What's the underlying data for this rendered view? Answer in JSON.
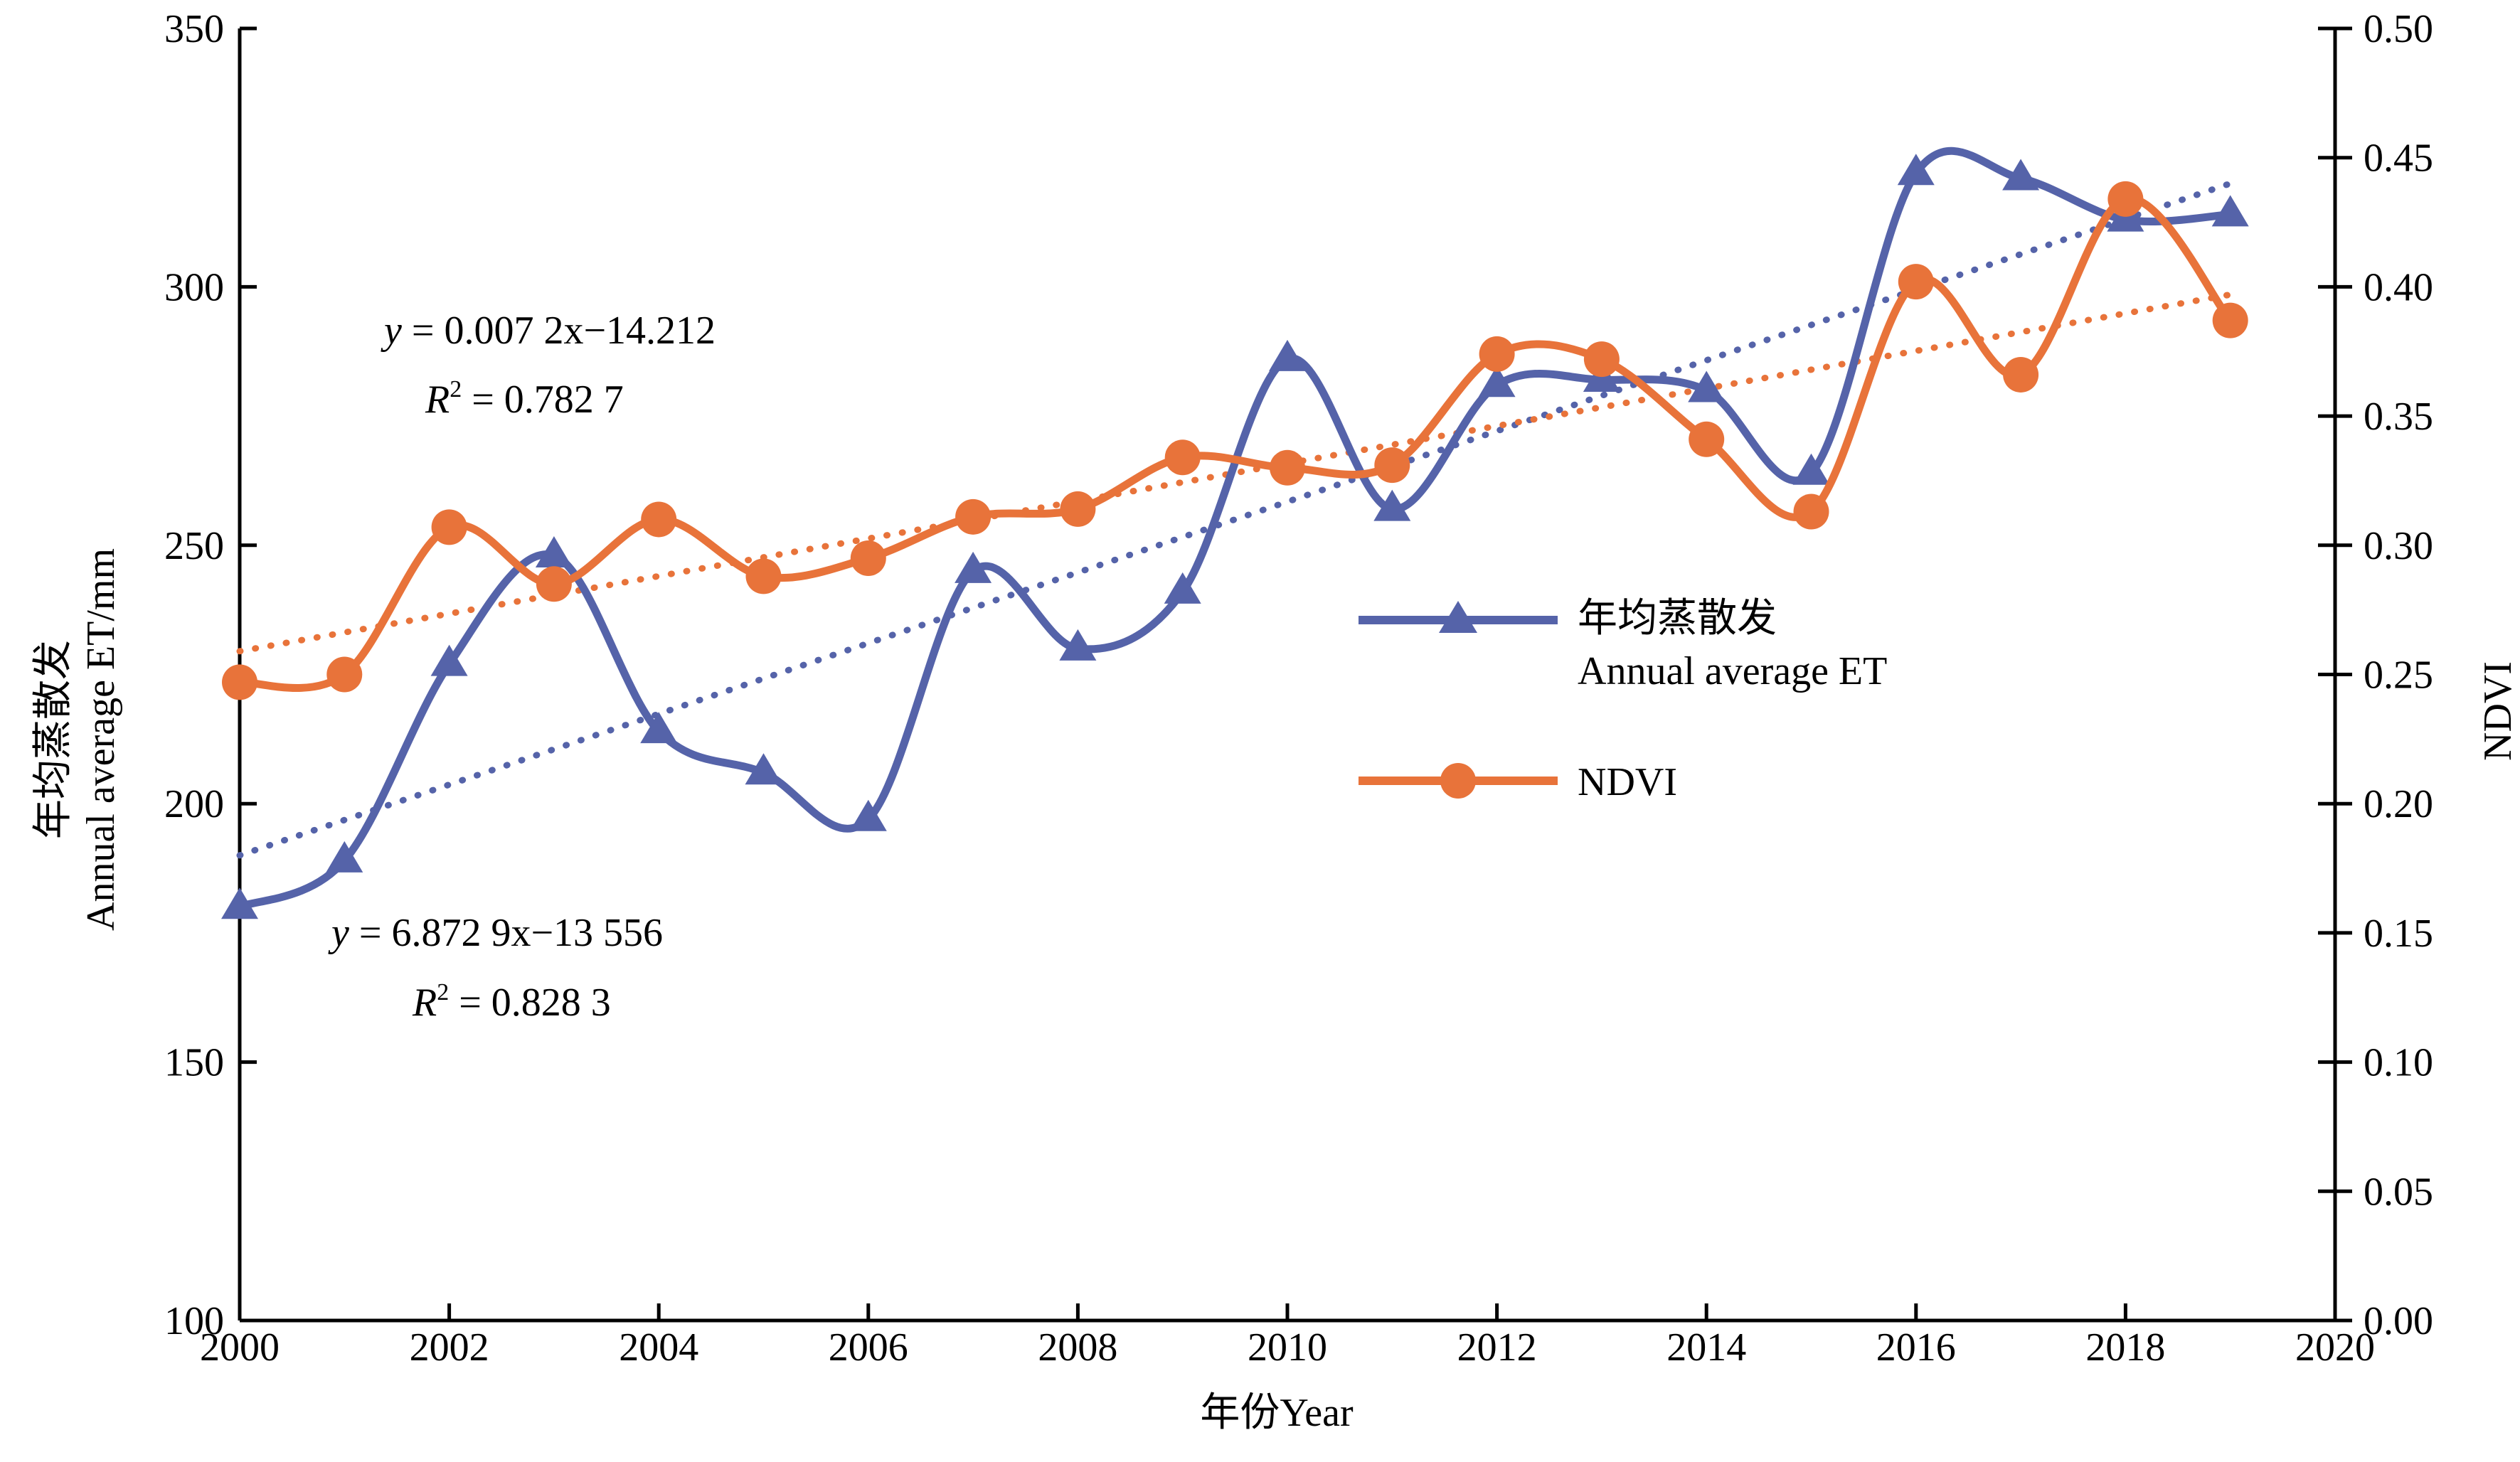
{
  "chart_data": {
    "type": "line",
    "x_axis": {
      "label": "年份Year",
      "range": [
        2000,
        2020
      ],
      "ticks": [
        2000,
        2002,
        2004,
        2006,
        2008,
        2010,
        2012,
        2014,
        2016,
        2018,
        2020
      ]
    },
    "y_left": {
      "label_cn": "年均蒸散发",
      "label_en": "Annual average ET/mm",
      "range": [
        100,
        350
      ],
      "ticks": [
        100,
        150,
        200,
        250,
        300,
        350
      ]
    },
    "y_right": {
      "label": "NDVI",
      "range": [
        0,
        0.5
      ],
      "ticks": [
        "0.00",
        "0.05",
        "0.10",
        "0.15",
        "0.20",
        "0.25",
        "0.30",
        "0.35",
        "0.40",
        "0.45",
        "0.50"
      ]
    },
    "x": [
      2000,
      2001,
      2002,
      2003,
      2004,
      2005,
      2006,
      2007,
      2008,
      2009,
      2010,
      2011,
      2012,
      2013,
      2014,
      2015,
      2016,
      2017,
      2018,
      2019
    ],
    "series": [
      {
        "name_cn": "年均蒸散发",
        "name_en": "Annual average ET",
        "axis": "left",
        "marker": "triangle",
        "color": "#5563A9",
        "values": [
          180,
          189,
          227,
          248,
          214,
          206,
          197,
          245,
          230,
          241,
          286,
          257,
          281,
          282,
          280,
          264,
          322,
          321,
          313,
          314
        ],
        "trend": {
          "x0": 2000,
          "y0": 190,
          "x1": 2019,
          "y1": 320
        }
      },
      {
        "name": "NDVI",
        "axis": "right",
        "marker": "circle",
        "color": "#E8733A",
        "values": [
          0.247,
          0.25,
          0.307,
          0.285,
          0.31,
          0.288,
          0.295,
          0.311,
          0.314,
          0.334,
          0.33,
          0.331,
          0.374,
          0.372,
          0.341,
          0.313,
          0.402,
          0.366,
          0.434,
          0.387
        ],
        "trend": {
          "x0": 2000,
          "y0": 0.259,
          "x1": 2019,
          "y1": 0.397
        }
      }
    ],
    "annotations": {
      "ndvi_eq": "= 0.007 2x−14.212",
      "ndvi_r2": " = 0.782 7",
      "et_eq": "= 6.872 9x−13 556",
      "et_r2": " = 0.828 3",
      "y_sym": "y",
      "r_sym": "R",
      "r_sup": "2"
    },
    "grid": false,
    "legend_position": "center-right"
  }
}
